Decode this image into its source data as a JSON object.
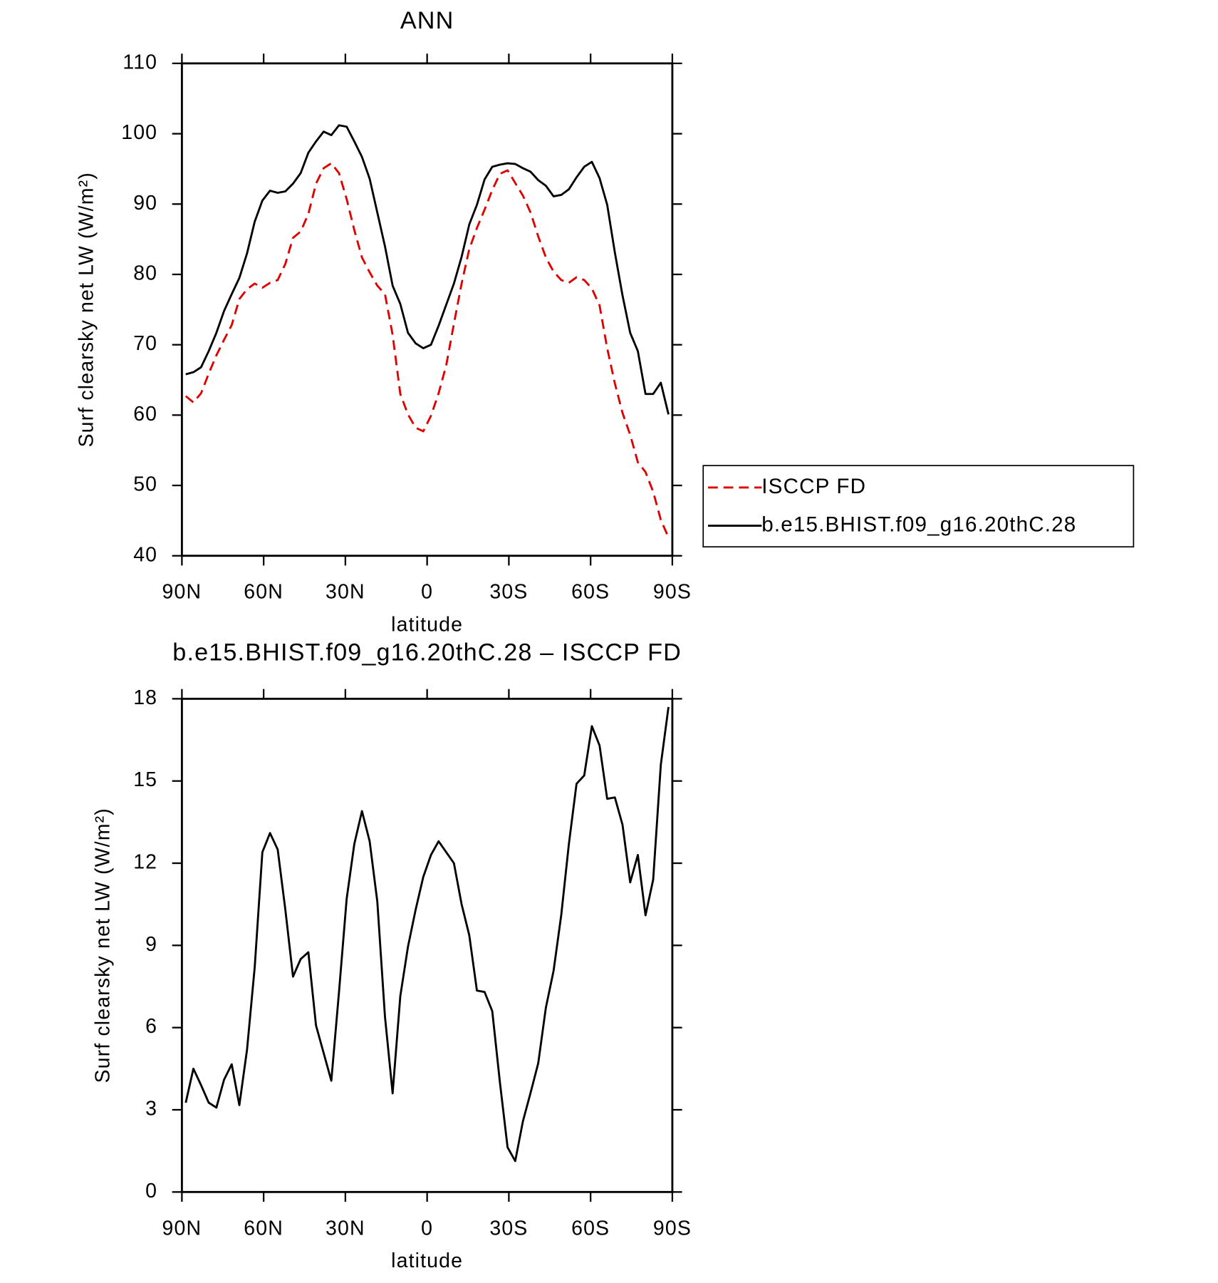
{
  "chart_data": [
    {
      "type": "line",
      "title": "ANN",
      "xlabel": "latitude",
      "ylabel": "Surf clearsky net LW (W/m²)",
      "xlim": [
        90,
        -90
      ],
      "ylim": [
        40,
        110
      ],
      "xticks": [
        {
          "value": 90,
          "label": "90N"
        },
        {
          "value": 60,
          "label": "60N"
        },
        {
          "value": 30,
          "label": "30N"
        },
        0,
        {
          "value": -30,
          "label": "30S"
        },
        {
          "value": -60,
          "label": "60S"
        },
        {
          "value": -90,
          "label": "90S"
        }
      ],
      "yticks": [
        40,
        50,
        60,
        70,
        80,
        90,
        100,
        110
      ],
      "legend": "right",
      "x": [
        88.59,
        85.78,
        82.97,
        80.16,
        77.34,
        74.53,
        71.72,
        68.91,
        66.09,
        63.28,
        60.47,
        57.66,
        54.84,
        52.03,
        49.22,
        46.41,
        43.59,
        40.78,
        37.97,
        35.16,
        32.34,
        29.53,
        26.72,
        23.91,
        21.09,
        18.28,
        15.47,
        12.66,
        9.84,
        7.03,
        4.22,
        1.41,
        -1.41,
        -4.22,
        -7.03,
        -9.84,
        -12.66,
        -15.47,
        -18.28,
        -21.09,
        -23.91,
        -26.72,
        -29.53,
        -32.34,
        -35.16,
        -37.97,
        -40.78,
        -43.59,
        -46.41,
        -49.22,
        -52.03,
        -54.84,
        -57.66,
        -60.47,
        -63.28,
        -66.09,
        -68.91,
        -71.72,
        -74.53,
        -77.34,
        -80.16,
        -82.97,
        -85.78,
        -88.59
      ],
      "series": [
        {
          "name": "ISCCP FD",
          "color": "#e00000",
          "line_style": "dashed",
          "values": [
            62.7,
            61.8,
            63.1,
            65.9,
            68.5,
            70.7,
            72.8,
            76.5,
            77.9,
            78.7,
            78.1,
            78.8,
            79.2,
            81.5,
            85.2,
            86.1,
            88.6,
            92.9,
            95.1,
            95.8,
            94.4,
            90.7,
            86.3,
            82.4,
            80.3,
            78.4,
            77.2,
            71.4,
            63,
            60.1,
            58.2,
            57.7,
            59.9,
            63.1,
            67.1,
            73,
            78.7,
            83.6,
            86.6,
            89.2,
            92,
            94.3,
            94.8,
            93,
            91.2,
            88.8,
            85.4,
            82.4,
            80.4,
            79.2,
            78.8,
            79.6,
            79.2,
            78,
            75.6,
            69.5,
            64.5,
            60.3,
            57.2,
            53.3,
            51.9,
            49.1,
            45.1,
            42.6
          ]
        },
        {
          "name": "b.e15.BHIST.f09_g16.20thC.28",
          "color": "#000000",
          "line_style": "solid",
          "values": [
            65.8,
            66.1,
            66.8,
            69.1,
            71.7,
            74.8,
            77.2,
            79.5,
            83,
            87.5,
            90.5,
            91.9,
            91.6,
            91.8,
            92.9,
            94.4,
            97.3,
            98.9,
            100.3,
            99.8,
            101.2,
            101,
            98.9,
            96.7,
            93.6,
            88.8,
            84,
            78.4,
            75.8,
            71.7,
            70.2,
            69.5,
            70,
            72.7,
            75.7,
            78.7,
            82.5,
            87.1,
            89.9,
            93.5,
            95.3,
            95.6,
            95.8,
            95.7,
            95.1,
            94.6,
            93.4,
            92.6,
            91.1,
            91.3,
            92.1,
            93.8,
            95.3,
            96,
            93.7,
            89.9,
            83.1,
            77,
            71.7,
            69.1,
            63,
            63,
            64.6,
            60.1
          ]
        }
      ]
    },
    {
      "type": "line",
      "title": "b.e15.BHIST.f09_g16.20thC.28 – ISCCP FD",
      "xlabel": "latitude",
      "ylabel": "Surf clearsky net LW (W/m²)",
      "xlim": [
        90,
        -90
      ],
      "ylim": [
        0,
        18
      ],
      "xticks": [
        {
          "value": 90,
          "label": "90N"
        },
        {
          "value": 60,
          "label": "60N"
        },
        {
          "value": 30,
          "label": "30N"
        },
        0,
        {
          "value": -30,
          "label": "30S"
        },
        {
          "value": -60,
          "label": "60S"
        },
        {
          "value": -90,
          "label": "90S"
        }
      ],
      "yticks": [
        0,
        3,
        6,
        9,
        12,
        15,
        18
      ],
      "x": [
        88.59,
        85.78,
        82.97,
        80.16,
        77.34,
        74.53,
        71.72,
        68.91,
        66.09,
        63.28,
        60.47,
        57.66,
        54.84,
        52.03,
        49.22,
        46.41,
        43.59,
        40.78,
        37.97,
        35.16,
        32.34,
        29.53,
        26.72,
        23.91,
        21.09,
        18.28,
        15.47,
        12.66,
        9.84,
        7.03,
        4.22,
        1.41,
        -1.41,
        -4.22,
        -7.03,
        -9.84,
        -12.66,
        -15.47,
        -18.28,
        -21.09,
        -23.91,
        -26.72,
        -29.53,
        -32.34,
        -35.16,
        -37.97,
        -40.78,
        -43.59,
        -46.41,
        -49.22,
        -52.03,
        -54.84,
        -57.66,
        -60.47,
        -63.28,
        -66.09,
        -68.91,
        -71.72,
        -74.53,
        -77.34,
        -80.16,
        -82.97,
        -85.78,
        -88.59
      ],
      "color": "#000000",
      "values": [
        3.26,
        4.5,
        3.9,
        3.26,
        3.08,
        4.1,
        4.66,
        3.17,
        5.2,
        8.2,
        12.4,
        13.1,
        12.5,
        10.3,
        7.86,
        8.5,
        8.75,
        6.08,
        5.07,
        4.06,
        7.3,
        10.7,
        12.7,
        13.9,
        12.8,
        10.6,
        6.4,
        3.6,
        7.15,
        8.95,
        10.3,
        11.5,
        12.3,
        12.8,
        12.4,
        12,
        10.5,
        9.37,
        7.35,
        7.3,
        6.6,
        4,
        1.63,
        1.13,
        2.58,
        3.62,
        4.7,
        6.73,
        8.07,
        10.1,
        12.7,
        14.9,
        15.2,
        17,
        16.3,
        14.35,
        14.4,
        13.4,
        11.3,
        12.3,
        10.1,
        11.4,
        15.6,
        17.7
      ]
    }
  ]
}
